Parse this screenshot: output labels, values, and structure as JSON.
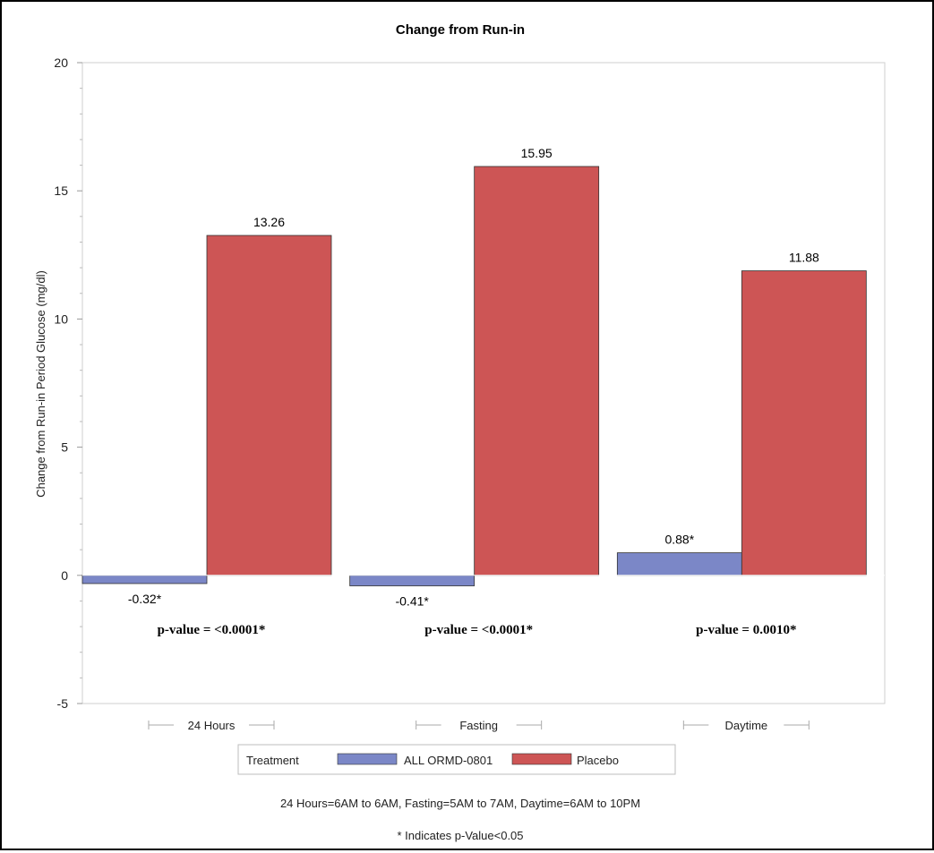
{
  "chart_data": {
    "type": "bar",
    "title": "Change from Run-in",
    "ylabel": "Change from Run-in Period Glucose (mg/dl)",
    "xlabel": "",
    "ylim": [
      -5,
      20
    ],
    "yticks": [
      -5,
      0,
      5,
      10,
      15,
      20
    ],
    "categories": [
      "24 Hours",
      "Fasting",
      "Daytime"
    ],
    "series": [
      {
        "name": "ALL ORMD-0801",
        "color": "#7b87c7",
        "values": [
          -0.32,
          -0.41,
          0.88
        ],
        "labels": [
          "-0.32*",
          "-0.41*",
          "0.88*"
        ]
      },
      {
        "name": "Placebo",
        "color": "#cd5555",
        "values": [
          13.26,
          15.95,
          11.88
        ],
        "labels": [
          "13.26",
          "15.95",
          "11.88"
        ]
      }
    ],
    "annotations": [
      "p-value = <0.0001*",
      "p-value = <0.0001*",
      "p-value = 0.0010*"
    ],
    "legend": {
      "title": "Treatment",
      "placement": "bottom-center"
    },
    "footnotes": [
      "24 Hours=6AM to 6AM, Fasting=5AM to 7AM, Daytime=6AM to 10PM",
      "* Indicates p-Value<0.05"
    ],
    "grid": false
  }
}
